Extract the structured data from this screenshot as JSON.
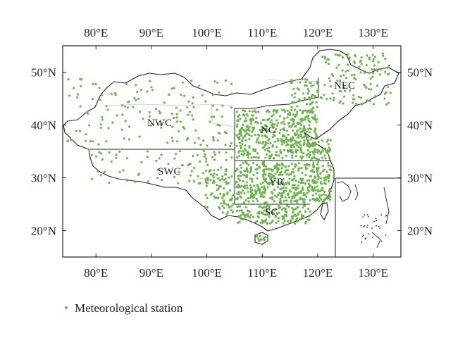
{
  "colors": {
    "station": "#6ab64a",
    "frame": "#231f20",
    "boundary": "#231f20",
    "province": "#c9c4c4"
  },
  "axes": {
    "x_ticks": [
      {
        "value": 80,
        "label": "80°E"
      },
      {
        "value": 90,
        "label": "90°E"
      },
      {
        "value": 100,
        "label": "100°E"
      },
      {
        "value": 110,
        "label": "110°E"
      },
      {
        "value": 120,
        "label": "120°E"
      },
      {
        "value": 130,
        "label": "130°E"
      }
    ],
    "y_ticks": [
      {
        "value": 20,
        "label": "20°N"
      },
      {
        "value": 30,
        "label": "30°N"
      },
      {
        "value": 40,
        "label": "40°N"
      },
      {
        "value": 50,
        "label": "50°N"
      }
    ],
    "lon_range": [
      74,
      135
    ],
    "lat_range": [
      15,
      55
    ]
  },
  "regions": {
    "nwc": "NWC",
    "swc": "SWC",
    "nc": "NC",
    "nec": "NEC",
    "yr": "YR",
    "sc": "SC"
  },
  "legend": {
    "label": "Meteorological station",
    "symbol": "dot"
  }
}
